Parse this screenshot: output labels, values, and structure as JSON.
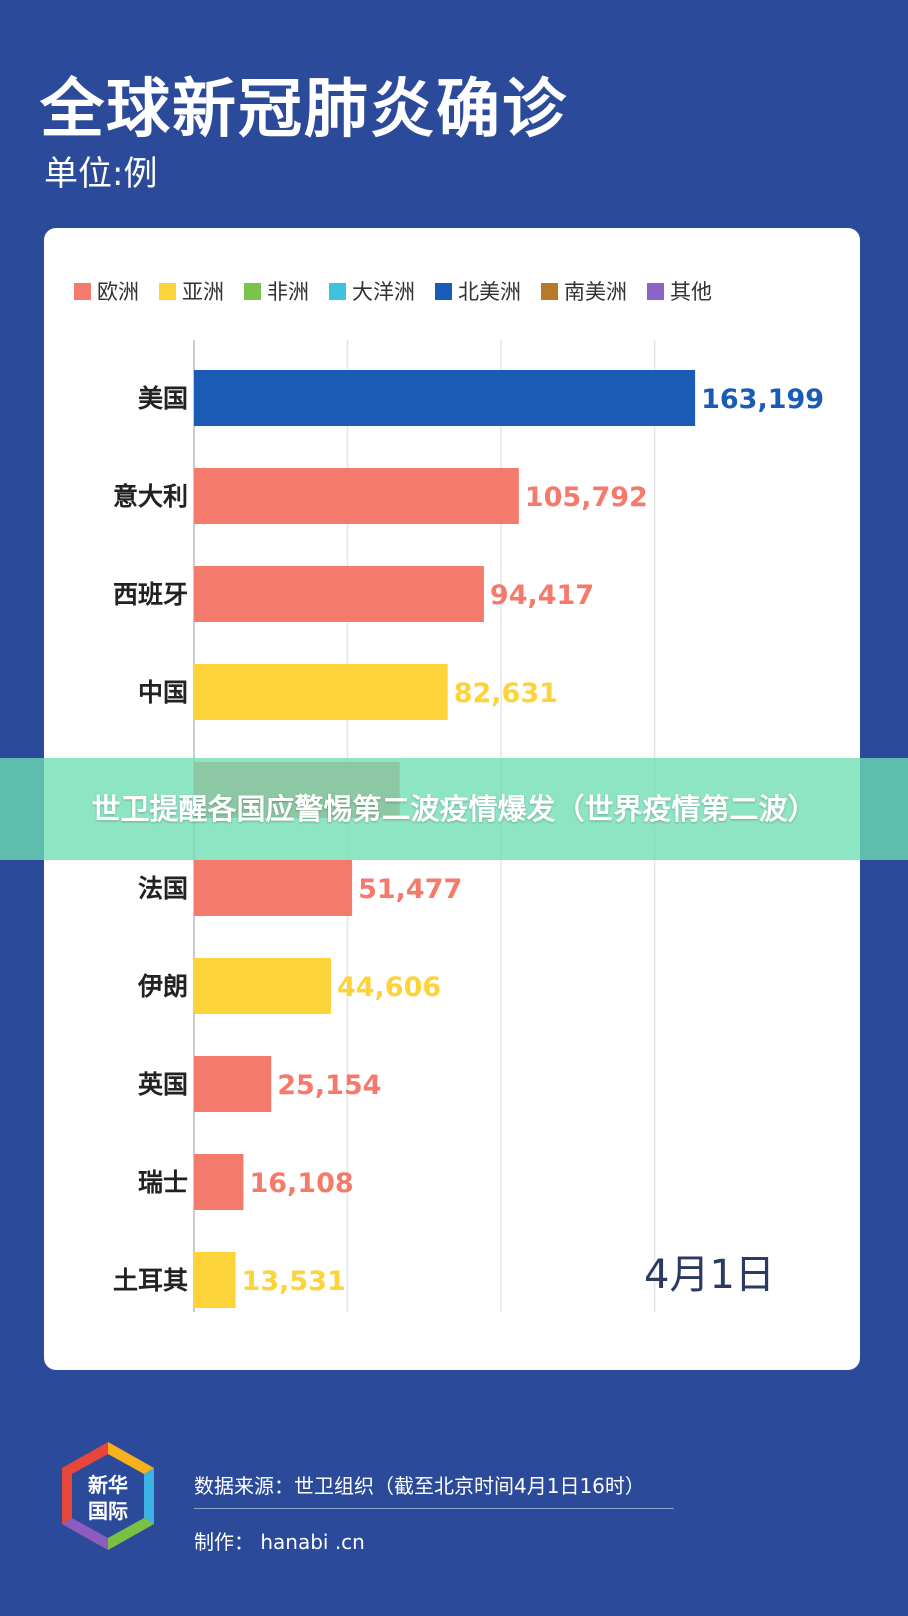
{
  "header": {
    "title": "全球新冠肺炎确诊",
    "unit": "单位:例"
  },
  "legend": [
    {
      "label": "欧洲",
      "color": "#f47a6b"
    },
    {
      "label": "亚洲",
      "color": "#fdd33a"
    },
    {
      "label": "非洲",
      "color": "#7cc24f"
    },
    {
      "label": "大洋洲",
      "color": "#3ec3dc"
    },
    {
      "label": "北美洲",
      "color": "#1a5bb5"
    },
    {
      "label": "南美洲",
      "color": "#b77a2a"
    },
    {
      "label": "其他",
      "color": "#8866c8"
    }
  ],
  "chart_data": {
    "type": "bar",
    "orientation": "horizontal",
    "title": "全球新冠肺炎确诊",
    "unit": "单位:例",
    "categories": [
      "美国",
      "意大利",
      "西班牙",
      "中国",
      "",
      "法国",
      "伊朗",
      "英国",
      "瑞士",
      "土耳其"
    ],
    "values": [
      163199,
      105792,
      94417,
      82631,
      null,
      51477,
      44606,
      25154,
      16108,
      13531
    ],
    "value_labels": [
      "163,199",
      "105,792",
      "94,417",
      "82,631",
      "",
      "51,477",
      "44,606",
      "25,154",
      "16,108",
      "13,531"
    ],
    "regions": [
      "北美洲",
      "欧洲",
      "欧洲",
      "亚洲",
      "欧洲",
      "欧洲",
      "亚洲",
      "欧洲",
      "欧洲",
      "亚洲"
    ],
    "xlim": [
      0,
      170000
    ],
    "grid": true,
    "legend_position": "top",
    "annotation": "4月1日"
  },
  "hidden_row": {
    "value": 67000
  },
  "banner": {
    "text": "世卫提醒各国应警惕第二波疫情爆发（世界疫情第二波）"
  },
  "footer": {
    "logo_text_1": "新华",
    "logo_text_2": "国际",
    "source": "数据来源：世卫组织（截至北京时间4月1日16时）",
    "maker": "制作： hanabi .cn"
  }
}
